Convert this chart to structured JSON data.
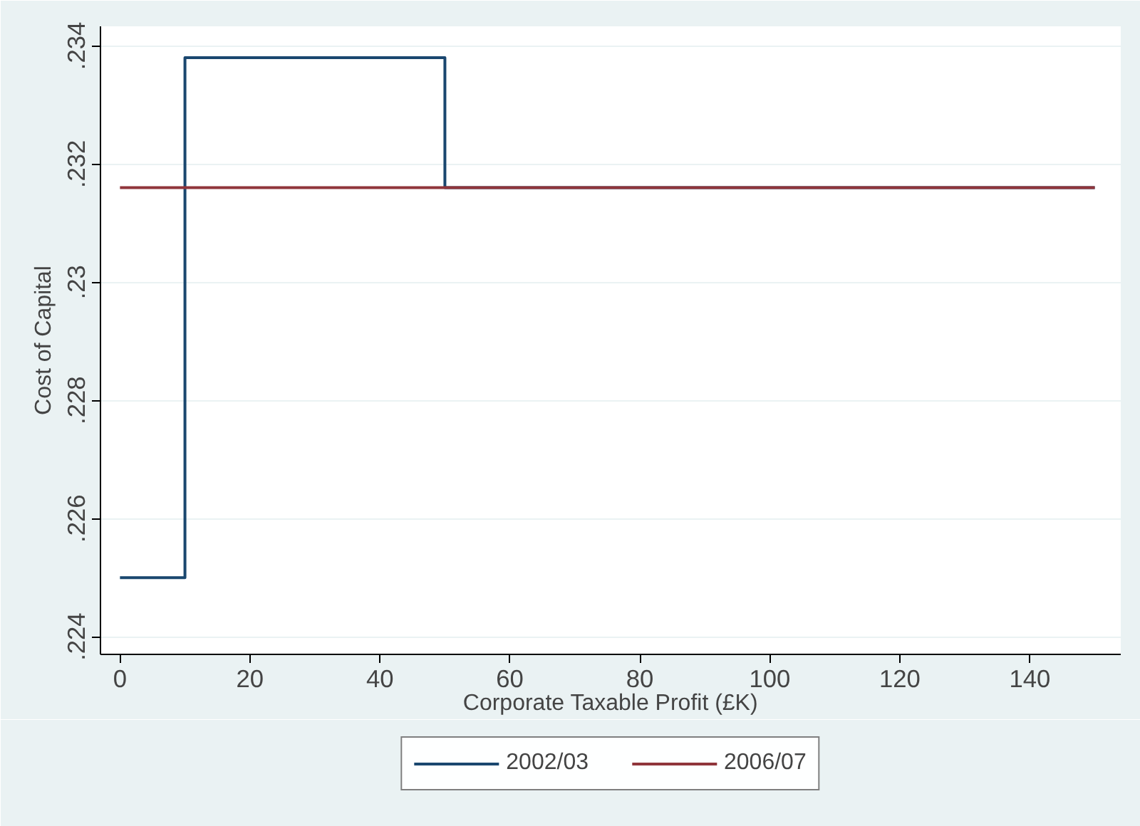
{
  "chart_data": {
    "type": "line",
    "xlabel": "Corporate Taxable Profit (£K)",
    "ylabel": "Cost of Capital",
    "xlim": [
      -3,
      154
    ],
    "xticks": [
      0,
      20,
      40,
      60,
      80,
      100,
      120,
      140
    ],
    "ylim": [
      0.2237,
      0.23433
    ],
    "yticks": [
      {
        "value": 0.224,
        "label": ".224"
      },
      {
        "value": 0.226,
        "label": ".226"
      },
      {
        "value": 0.228,
        "label": ".228"
      },
      {
        "value": 0.23,
        "label": ".23"
      },
      {
        "value": 0.232,
        "label": ".232"
      },
      {
        "value": 0.234,
        "label": ".234"
      }
    ],
    "grid": "y",
    "legend": "bottom",
    "series": [
      {
        "name": "2002/03",
        "color": "#1a476f",
        "x": [
          0,
          10,
          10,
          50,
          50,
          150
        ],
        "values": [
          0.225,
          0.225,
          0.2338,
          0.2338,
          0.2316,
          0.2316
        ]
      },
      {
        "name": "2006/07",
        "color": "#90353b",
        "x": [
          0,
          150
        ],
        "values": [
          0.2316,
          0.2316
        ]
      }
    ]
  }
}
